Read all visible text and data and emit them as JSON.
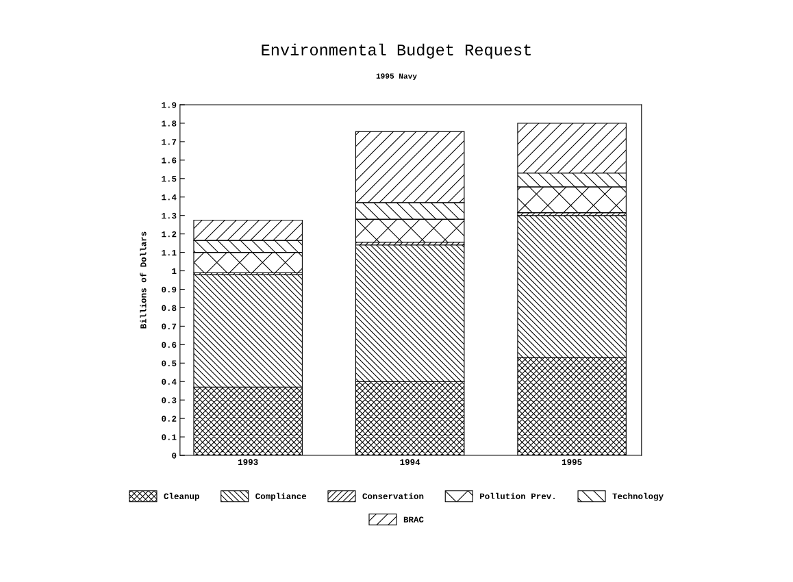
{
  "chart_data": {
    "type": "bar",
    "title": "Environmental Budget Request",
    "subtitle": "1995 Navy",
    "ylabel": "Billions of Dollars",
    "categories": [
      "1993",
      "1994",
      "1995"
    ],
    "stacked": true,
    "series": [
      {
        "name": "Cleanup",
        "color": "#000000",
        "values": [
          0.37,
          0.4,
          0.53
        ]
      },
      {
        "name": "Compliance",
        "color": "#000000",
        "values": [
          0.61,
          0.74,
          0.77
        ]
      },
      {
        "name": "Conservation",
        "color": "#000000",
        "values": [
          0.01,
          0.015,
          0.015
        ]
      },
      {
        "name": "Pollution Prev.",
        "color": "#000000",
        "values": [
          0.11,
          0.125,
          0.14
        ]
      },
      {
        "name": "Technology",
        "color": "#000000",
        "values": [
          0.065,
          0.09,
          0.075
        ]
      },
      {
        "name": "BRAC",
        "color": "#000000",
        "values": [
          0.11,
          0.385,
          0.27
        ]
      }
    ],
    "ylim": [
      0,
      1.9
    ],
    "yticks": [
      0,
      0.1,
      0.2,
      0.3,
      0.4,
      0.5,
      0.6,
      0.7,
      0.8,
      0.9,
      1,
      1.1,
      1.2,
      1.3,
      1.4,
      1.5,
      1.6,
      1.7,
      1.8,
      1.9
    ],
    "grid": false,
    "legend": "bottom"
  }
}
